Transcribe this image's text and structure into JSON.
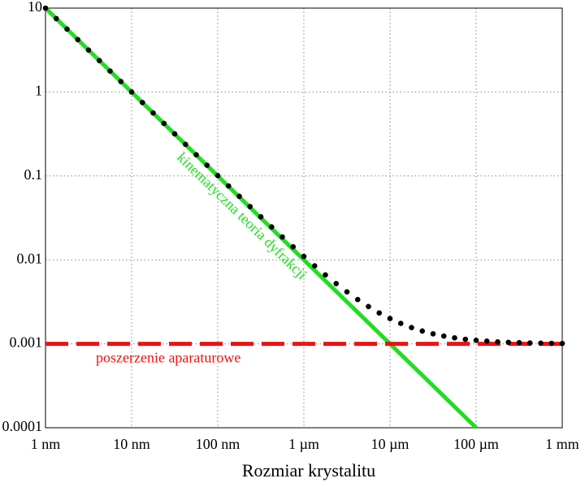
{
  "chart_data": {
    "type": "line",
    "xlabel": "Rozmiar krystalitu",
    "xscale": "log",
    "yscale": "log",
    "grid": true,
    "xlim": [
      1,
      1000000
    ],
    "xticks": [
      {
        "value": 1,
        "label": "1 nm"
      },
      {
        "value": 10,
        "label": "10 nm"
      },
      {
        "value": 100,
        "label": "100 nm"
      },
      {
        "value": 1000,
        "label": "1 µm"
      },
      {
        "value": 10000,
        "label": "10 µm"
      },
      {
        "value": 100000,
        "label": "100 µm"
      },
      {
        "value": 1000000,
        "label": "1 mm"
      }
    ],
    "ylim": [
      0.0001,
      10
    ],
    "yticks": [
      0.0001,
      0.001,
      0.01,
      0.1,
      1,
      10
    ],
    "series": [
      {
        "name": "kinematyczna teoria dyfrakcji",
        "color": "#22dd22",
        "style": "solid",
        "x": [
          1,
          100000
        ],
        "values": [
          10,
          0.0001
        ]
      },
      {
        "name": "poszerzenie aparaturowe",
        "color": "#ee1111",
        "style": "dashed",
        "x": [
          1,
          1000000
        ],
        "values": [
          0.001,
          0.001
        ]
      },
      {
        "color": "#000000",
        "style": "dots",
        "x": [
          1,
          1.334,
          1.778,
          2.371,
          3.162,
          4.217,
          5.623,
          7.499,
          10,
          13.34,
          17.78,
          23.71,
          31.62,
          42.17,
          56.23,
          74.99,
          100,
          133.4,
          177.8,
          237.1,
          316.2,
          421.7,
          562.3,
          749.9,
          1000,
          1334,
          1778,
          2371,
          3162,
          4217,
          5623,
          7499,
          10000,
          13335,
          17783,
          23714,
          31623,
          42170,
          56234,
          74989,
          100000,
          133352,
          177828,
          237137,
          316228,
          421697,
          562341,
          749894,
          1000000
        ],
        "values": [
          10.0,
          7.5,
          5.624,
          4.218,
          3.163,
          2.372,
          1.779,
          1.335,
          1.001,
          0.7509,
          0.5633,
          0.4227,
          0.3172,
          0.2381,
          0.1788,
          0.1344,
          0.101,
          0.07599,
          0.05723,
          0.04317,
          0.03262,
          0.02471,
          0.01878,
          0.01434,
          0.011,
          0.008499,
          0.006623,
          0.005217,
          0.004162,
          0.003371,
          0.002778,
          0.002334,
          0.002,
          0.00175,
          0.001562,
          0.001422,
          0.001316,
          0.001237,
          0.001178,
          0.001133,
          0.0011,
          0.001075,
          0.001056,
          0.001042,
          0.001032,
          0.001024,
          0.001018,
          0.001013,
          0.00101
        ]
      }
    ]
  }
}
